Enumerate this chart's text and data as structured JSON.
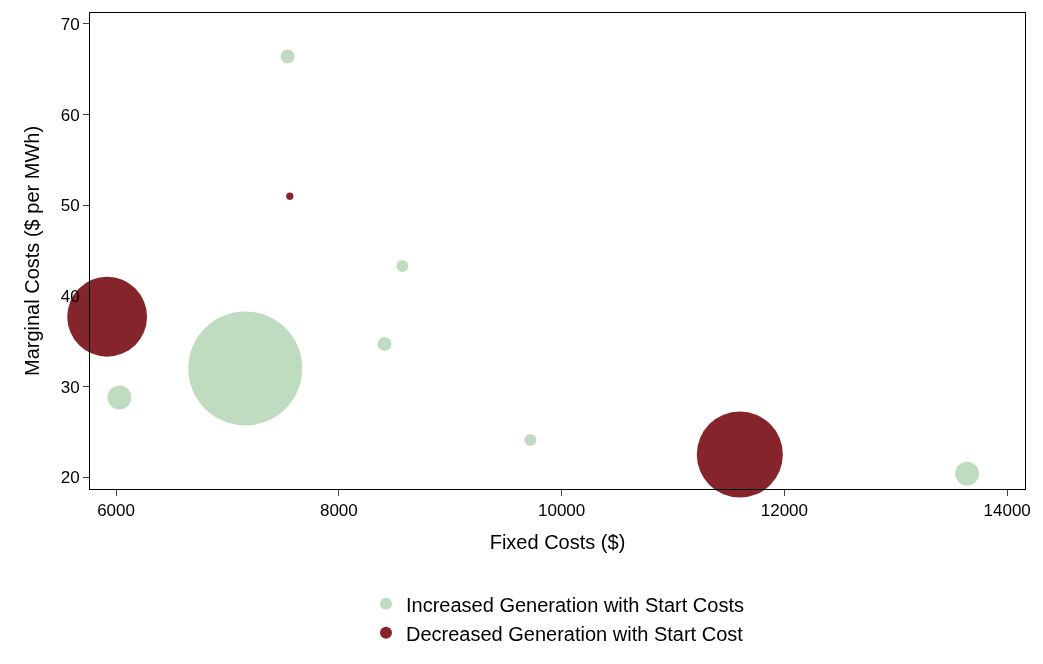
{
  "chart_data": {
    "type": "bubble",
    "xlabel": "Fixed Costs ($)",
    "ylabel": "Marginal Costs ($ per MWh)",
    "xlim": [
      5766,
      14160
    ],
    "xticks": [
      6000,
      8000,
      10000,
      12000,
      14000
    ],
    "ylim": [
      18.7,
      71.2
    ],
    "yticks": [
      20,
      30,
      40,
      50,
      60,
      70
    ],
    "legend": "bottom",
    "series": [
      {
        "name": "Increased Generation with Start Costs",
        "color": "#bfdcc0",
        "x": [
          7540,
          8570,
          8410,
          7160,
          6030,
          9720,
          13640
        ],
        "values": [
          66.4,
          43.3,
          34.7,
          32.0,
          28.8,
          24.1,
          20.4
        ],
        "sizes": [
          0.015,
          0.011,
          0.015,
          1,
          0.044,
          0.011,
          0.044
        ]
      },
      {
        "name": "Decreased Generation with Start Cost",
        "color": "#85242b",
        "x": [
          5920,
          11600,
          7560
        ],
        "values": [
          37.7,
          22.5,
          51.0
        ],
        "sizes": [
          0.49,
          0.57,
          0.004
        ]
      }
    ]
  }
}
